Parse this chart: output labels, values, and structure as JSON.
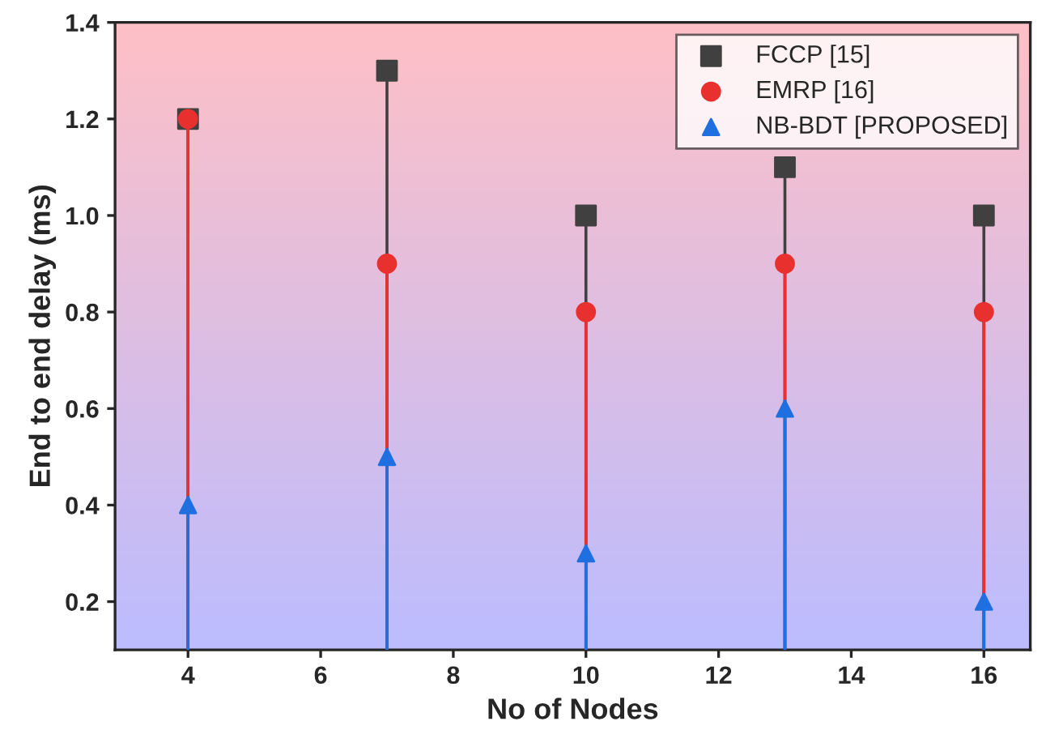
{
  "chart_data": {
    "type": "lollipop",
    "xlabel": "No of Nodes",
    "ylabel": "End to end delay (ms)",
    "x": [
      4,
      7,
      10,
      13,
      16
    ],
    "series": [
      {
        "name": "FCCP [15]",
        "color": "#404040",
        "marker": "square",
        "values": [
          1.2,
          1.3,
          1.0,
          1.1,
          1.0
        ]
      },
      {
        "name": "EMRP [16]",
        "color": "#e8312f",
        "marker": "circle",
        "values": [
          1.2,
          0.9,
          0.8,
          0.9,
          0.8
        ]
      },
      {
        "name": "NB-BDT [PROPOSED]",
        "color": "#1f6fe0",
        "marker": "triangle",
        "values": [
          0.4,
          0.5,
          0.3,
          0.6,
          0.2
        ]
      }
    ],
    "xlim": [
      2.9,
      16.7
    ],
    "ylim": [
      0.1,
      1.4
    ],
    "xticks": [
      4,
      6,
      8,
      10,
      12,
      14,
      16
    ],
    "yticks": [
      {
        "value": 0.2,
        "label": "0.2"
      },
      {
        "value": 0.4,
        "label": "0.4"
      },
      {
        "value": 0.6,
        "label": "0.6"
      },
      {
        "value": 0.8,
        "label": "0.8"
      },
      {
        "value": 1,
        "label": "1.0"
      },
      {
        "value": 1.2,
        "label": "1.2"
      },
      {
        "value": 1.4,
        "label": "1.4"
      }
    ],
    "legend": "top right",
    "grid": false
  }
}
